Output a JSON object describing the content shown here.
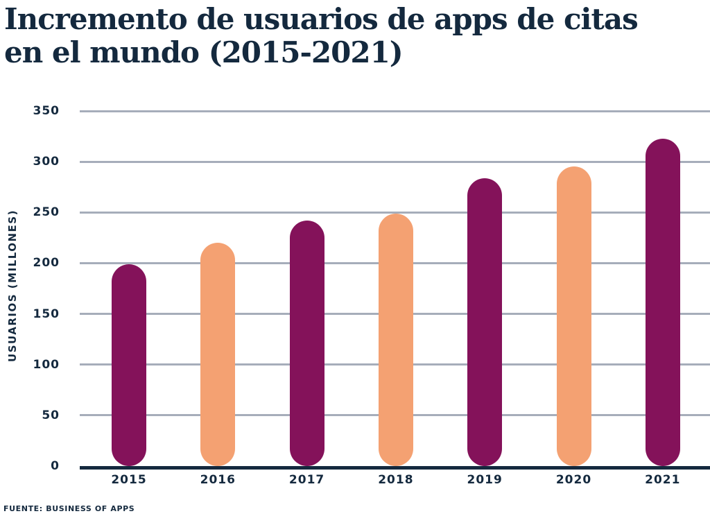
{
  "title": {
    "line1": "Incremento de usuarios de apps de citas",
    "line2": "en el mundo (2015-2021)"
  },
  "footer": {
    "source": "FUENTE: BUSINESS OF APPS"
  },
  "chart_data": {
    "type": "bar",
    "title": "Incremento de usuarios de apps de citas en el mundo (2015-2021)",
    "categories": [
      "2015",
      "2016",
      "2017",
      "2018",
      "2019",
      "2020",
      "2021"
    ],
    "values": [
      199,
      220,
      242,
      249,
      284,
      295,
      323
    ],
    "bar_colors": [
      "#84125A",
      "#F4A172",
      "#84125A",
      "#F4A172",
      "#84125A",
      "#F4A172",
      "#84125A"
    ],
    "xlabel": "",
    "ylabel": "USUARIOS (MILLONES)",
    "ylim": [
      0,
      350
    ],
    "yticks": [
      0,
      50,
      100,
      150,
      200,
      250,
      300,
      350
    ],
    "grid": true,
    "legend_position": "none",
    "colors": {
      "navy": "#14293E",
      "grid": "#A6ADBA",
      "purple": "#84125A",
      "peach": "#F4A172",
      "background": "#FFFFFF"
    }
  }
}
